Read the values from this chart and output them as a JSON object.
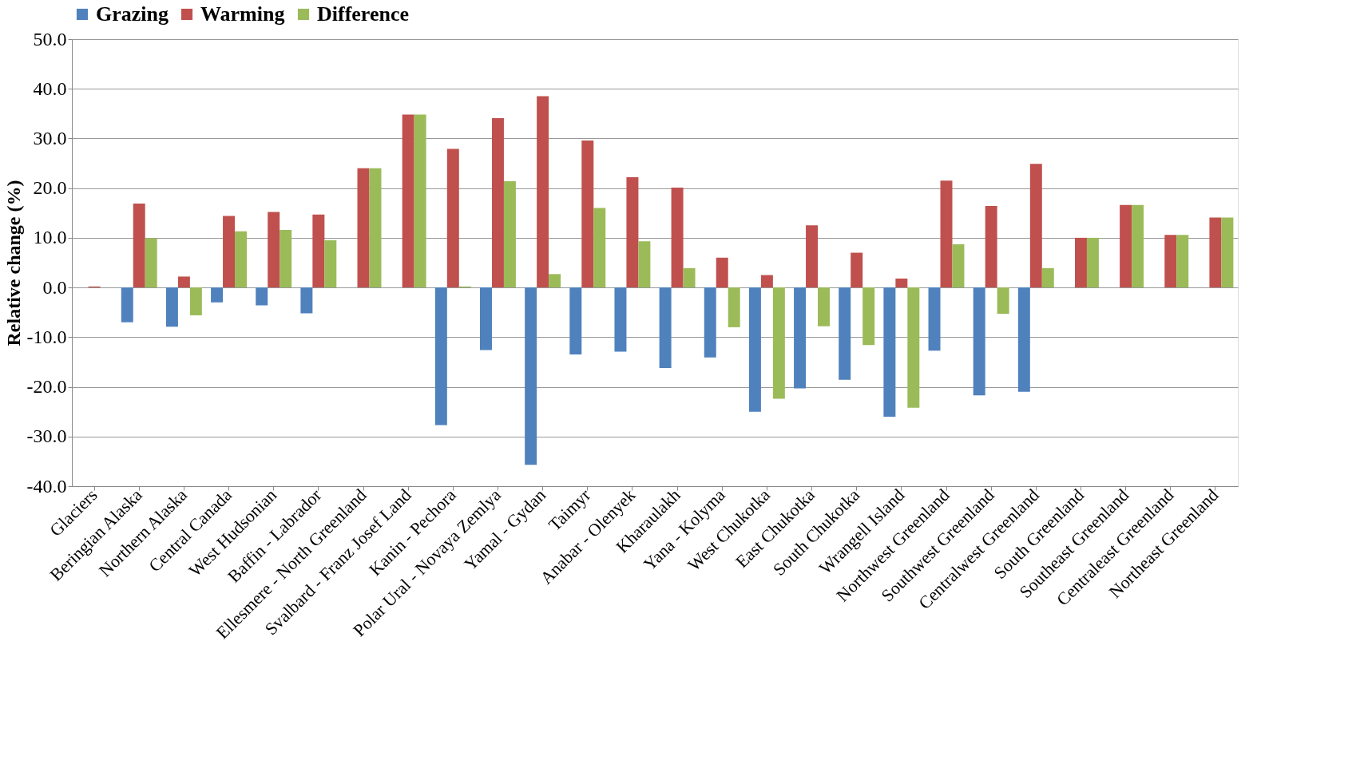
{
  "chart_data": {
    "type": "bar",
    "ylabel": "Relative change (%)",
    "categories": [
      "Glaciers",
      "Beringian Alaska",
      "Northern Alaska",
      "Central Canada",
      "West Hudsonian",
      "Baffin - Labrador",
      "Ellesmere - North Greenland",
      "Svalbard - Franz Josef Land",
      "Kanin - Pechora",
      "Polar Ural - Novaya Zemlya",
      "Yamal - Gydan",
      "Taimyr",
      "Anabar - Olenyek",
      "Kharaulakh",
      "Yana - Kolyma",
      "West Chukotka",
      "East Chukotka",
      "South Chukotka",
      "Wrangell Island",
      "Northwest Greenland",
      "Southwest Greenland",
      "Centralwest Greenland",
      "South Greenland",
      "Southeast Greenland",
      "Centraleast Greenland",
      "Northeast Greenland"
    ],
    "series": [
      {
        "name": "Grazing",
        "color": "#4f81bd",
        "values": [
          0,
          -7.0,
          -7.9,
          -3.0,
          -3.6,
          -5.2,
          0,
          0,
          -27.7,
          -12.6,
          -35.7,
          -13.5,
          -12.9,
          -16.2,
          -14.1,
          -25.0,
          -20.3,
          -18.6,
          -26.0,
          -12.7,
          -21.7,
          -21.0,
          0,
          0,
          0,
          0
        ]
      },
      {
        "name": "Warming",
        "color": "#c0504d",
        "values": [
          0.2,
          16.9,
          2.2,
          14.4,
          15.2,
          14.7,
          24.0,
          34.8,
          27.9,
          34.1,
          38.5,
          29.6,
          22.2,
          20.1,
          6.0,
          2.5,
          12.5,
          7.0,
          1.8,
          21.5,
          16.4,
          24.9,
          10.0,
          16.6,
          10.6,
          14.1
        ]
      },
      {
        "name": "Difference",
        "color": "#9bbb59",
        "values": [
          0,
          9.9,
          -5.6,
          11.3,
          11.6,
          9.5,
          24.0,
          34.8,
          0.2,
          21.4,
          2.7,
          16.0,
          9.3,
          3.9,
          -8.0,
          -22.4,
          -7.8,
          -11.6,
          -24.2,
          8.7,
          -5.3,
          3.9,
          10.0,
          16.6,
          10.6,
          14.1
        ]
      }
    ],
    "ylim": [
      -40,
      50
    ],
    "yticks": [
      {
        "value": -40,
        "label": "-40.0"
      },
      {
        "value": -30,
        "label": "-30.0"
      },
      {
        "value": -20,
        "label": "-20.0"
      },
      {
        "value": -10,
        "label": "-10.0"
      },
      {
        "value": 0,
        "label": "0.0"
      },
      {
        "value": 10,
        "label": "10.0"
      },
      {
        "value": 20,
        "label": "20.0"
      },
      {
        "value": 30,
        "label": "30.0"
      },
      {
        "value": 40,
        "label": "40.0"
      },
      {
        "value": 50,
        "label": "50.0"
      }
    ],
    "grid": "y",
    "legend": "top"
  }
}
